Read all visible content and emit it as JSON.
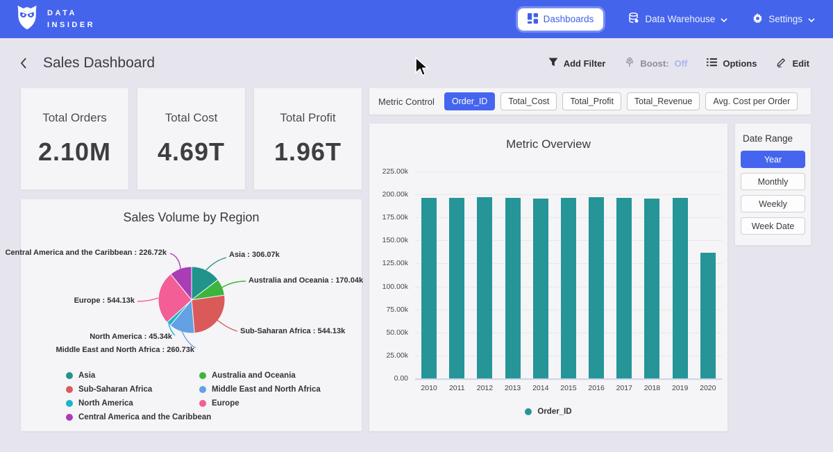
{
  "nav": {
    "brand_line1": "DATA",
    "brand_line2": "INSIDER",
    "dashboards_label": "Dashboards",
    "warehouse_label": "Data Warehouse",
    "settings_label": "Settings"
  },
  "header": {
    "title": "Sales Dashboard",
    "add_filter_label": "Add Filter",
    "boost_label": "Boost:",
    "boost_value": "Off",
    "options_label": "Options",
    "edit_label": "Edit"
  },
  "kpis": [
    {
      "label": "Total Orders",
      "value": "2.10M"
    },
    {
      "label": "Total Cost",
      "value": "4.69T"
    },
    {
      "label": "Total Profit",
      "value": "1.96T"
    }
  ],
  "metric_control": {
    "label": "Metric Control",
    "chips": [
      {
        "label": "Order_ID",
        "selected": true
      },
      {
        "label": "Total_Cost",
        "selected": false
      },
      {
        "label": "Total_Profit",
        "selected": false
      },
      {
        "label": "Total_Revenue",
        "selected": false
      },
      {
        "label": "Avg. Cost per Order",
        "selected": false
      }
    ]
  },
  "date_range": {
    "title": "Date Range",
    "options": [
      {
        "label": "Year",
        "selected": true
      },
      {
        "label": "Monthly",
        "selected": false
      },
      {
        "label": "Weekly",
        "selected": false
      },
      {
        "label": "Week Date",
        "selected": false
      }
    ]
  },
  "colors": {
    "nav_blue": "#4564ec",
    "accent_blue": "#4565ee",
    "bar_teal": "#259598",
    "page_bg": "#e6e4ed",
    "card_bg": "#f5f4f6"
  },
  "chart_data": [
    {
      "type": "pie",
      "title": "Sales Volume by Region",
      "unit": "k",
      "slices": [
        {
          "label": "Asia",
          "value": 306.07,
          "display": "Asia : 306.07k",
          "color": "#20948b"
        },
        {
          "label": "Australia and Oceania",
          "value": 170.04,
          "display": "Australia and Oceania : 170.04k",
          "color": "#3bb53c"
        },
        {
          "label": "Sub-Saharan Africa",
          "value": 544.13,
          "display": "Sub-Saharan Africa : 544.13k",
          "color": "#da5a5a"
        },
        {
          "label": "Middle East and North Africa",
          "value": 260.73,
          "display": "Middle East and North Africa : 260.73k",
          "color": "#63a0e4"
        },
        {
          "label": "North America",
          "value": 45.34,
          "display": "North America : 45.34k",
          "color": "#1ab5cb"
        },
        {
          "label": "Europe",
          "value": 544.13,
          "display": "Europe : 544.13k",
          "color": "#f25e95"
        },
        {
          "label": "Central America and the Caribbean",
          "value": 226.72,
          "display": "Central America and the Caribbean : 226.72k",
          "color": "#aa3cb5"
        }
      ],
      "legend_columns": [
        [
          "Asia",
          "Sub-Saharan Africa",
          "North America",
          "Central America and the Caribbean"
        ],
        [
          "Australia and Oceania",
          "Middle East and North Africa",
          "Europe"
        ]
      ],
      "legend_position": "bottom"
    },
    {
      "type": "bar",
      "title": "Metric Overview",
      "categories": [
        "2010",
        "2011",
        "2012",
        "2013",
        "2014",
        "2015",
        "2016",
        "2017",
        "2018",
        "2019",
        "2020"
      ],
      "series": [
        {
          "name": "Order_ID",
          "color": "#259598",
          "values": [
            196000,
            196100,
            197000,
            196000,
            195900,
            196000,
            197100,
            196200,
            195900,
            196000,
            136400
          ]
        }
      ],
      "ylim": [
        0,
        225000
      ],
      "yticks": [
        "225.00k",
        "200.00k",
        "175.00k",
        "150.00k",
        "125.00k",
        "100.00k",
        "75.00k",
        "50.00k",
        "25.00k",
        "0.00"
      ],
      "grid": true,
      "legend_position": "bottom",
      "xlabel": "",
      "ylabel": ""
    }
  ]
}
